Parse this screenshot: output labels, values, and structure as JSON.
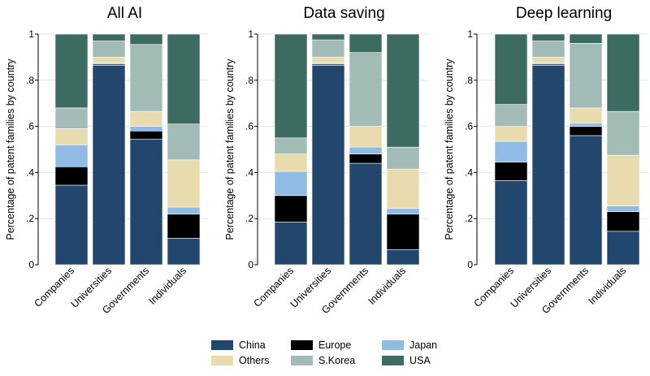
{
  "colors": {
    "China": "#23466d",
    "Europe": "#000000",
    "Japan": "#90bbe4",
    "Others": "#e8dcae",
    "S.Korea": "#a3bbb6",
    "USA": "#3c6b62"
  },
  "legend": {
    "entries": [
      "China",
      "Europe",
      "Japan",
      "Others",
      "S.Korea",
      "USA"
    ]
  },
  "chart_data": [
    {
      "type": "bar",
      "stacked": true,
      "title": "All AI",
      "ylabel": "Percentage of patent families by country",
      "ylim": [
        0,
        1
      ],
      "yticks": [
        "0",
        ".2",
        ".4",
        ".6",
        ".8",
        "1"
      ],
      "categories": [
        "Companies",
        "Universities",
        "Governments",
        "Individuals"
      ],
      "series": [
        {
          "name": "China",
          "values": [
            0.345,
            0.865,
            0.545,
            0.115
          ]
        },
        {
          "name": "Europe",
          "values": [
            0.08,
            0.005,
            0.035,
            0.105
          ]
        },
        {
          "name": "Japan",
          "values": [
            0.095,
            0.005,
            0.02,
            0.03
          ]
        },
        {
          "name": "Others",
          "values": [
            0.07,
            0.025,
            0.065,
            0.205
          ]
        },
        {
          "name": "S.Korea",
          "values": [
            0.09,
            0.07,
            0.29,
            0.155
          ]
        },
        {
          "name": "USA",
          "values": [
            0.32,
            0.03,
            0.045,
            0.39
          ]
        }
      ]
    },
    {
      "type": "bar",
      "stacked": true,
      "title": "Data saving",
      "ylabel": "Percentage of patent families by country",
      "ylim": [
        0,
        1
      ],
      "yticks": [
        "0",
        ".2",
        ".4",
        ".6",
        ".8",
        "1"
      ],
      "categories": [
        "Companies",
        "Universities",
        "Governments",
        "Individuals"
      ],
      "series": [
        {
          "name": "China",
          "values": [
            0.185,
            0.865,
            0.44,
            0.065
          ]
        },
        {
          "name": "Europe",
          "values": [
            0.115,
            0.005,
            0.04,
            0.155
          ]
        },
        {
          "name": "Japan",
          "values": [
            0.105,
            0.005,
            0.03,
            0.025
          ]
        },
        {
          "name": "Others",
          "values": [
            0.075,
            0.025,
            0.09,
            0.17
          ]
        },
        {
          "name": "S.Korea",
          "values": [
            0.07,
            0.075,
            0.32,
            0.095
          ]
        },
        {
          "name": "USA",
          "values": [
            0.45,
            0.025,
            0.08,
            0.49
          ]
        }
      ]
    },
    {
      "type": "bar",
      "stacked": true,
      "title": "Deep learning",
      "ylabel": "Percentage of patent families by country",
      "ylim": [
        0,
        1
      ],
      "yticks": [
        "0",
        ".2",
        ".4",
        ".6",
        ".8",
        "1"
      ],
      "categories": [
        "Companies",
        "Universities",
        "Governments",
        "Individuals"
      ],
      "series": [
        {
          "name": "China",
          "values": [
            0.365,
            0.865,
            0.56,
            0.145
          ]
        },
        {
          "name": "Europe",
          "values": [
            0.08,
            0.005,
            0.04,
            0.085
          ]
        },
        {
          "name": "Japan",
          "values": [
            0.09,
            0.005,
            0.015,
            0.025
          ]
        },
        {
          "name": "Others",
          "values": [
            0.065,
            0.025,
            0.065,
            0.22
          ]
        },
        {
          "name": "S.Korea",
          "values": [
            0.095,
            0.07,
            0.28,
            0.19
          ]
        },
        {
          "name": "USA",
          "values": [
            0.305,
            0.03,
            0.04,
            0.335
          ]
        }
      ]
    }
  ]
}
